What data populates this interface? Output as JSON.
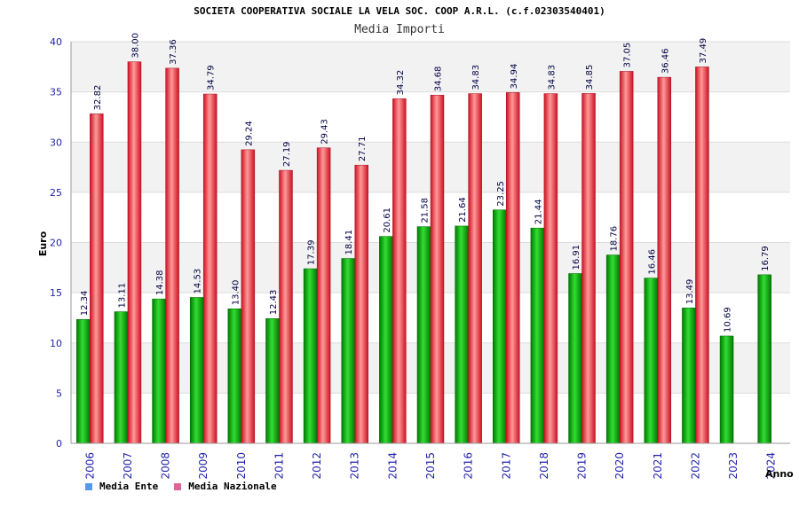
{
  "chart_data": {
    "type": "bar",
    "title": "SOCIETA COOPERATIVA SOCIALE LA VELA SOC. COOP A.R.L. (c.f.02303540401)",
    "subtitle": "Media Importi",
    "ylabel": "Euro",
    "xlabel": "Anno",
    "ylim": [
      0,
      40
    ],
    "yticks": [
      0,
      5,
      10,
      15,
      20,
      25,
      30,
      35,
      40
    ],
    "grid": true,
    "legend_position": "bottom-left",
    "categories": [
      "2006",
      "2007",
      "2008",
      "2009",
      "2010",
      "2011",
      "2012",
      "2013",
      "2014",
      "2015",
      "2016",
      "2017",
      "2018",
      "2019",
      "2020",
      "2021",
      "2022",
      "2023",
      "2024"
    ],
    "series": [
      {
        "name": "Media Ente",
        "color": "#22aa22",
        "legend_color": "#5599ee",
        "values": [
          12.34,
          13.11,
          14.38,
          14.53,
          13.4,
          12.43,
          17.39,
          18.41,
          20.61,
          21.58,
          21.64,
          23.25,
          21.44,
          16.91,
          18.76,
          16.46,
          13.49,
          10.69,
          16.79
        ],
        "labels": [
          "12.34",
          "13.11",
          "14.38",
          "14.53",
          "13.40",
          "12.43",
          "17.39",
          "18.41",
          "20.61",
          "21.58",
          "21.64",
          "23.25",
          "21.44",
          "16.91",
          "18.76",
          "16.46",
          "13.49",
          "10.69",
          "16.79"
        ]
      },
      {
        "name": "Media Nazionale",
        "color": "#ee3344",
        "legend_color": "#dd6699",
        "values": [
          32.82,
          38.0,
          37.36,
          34.79,
          29.24,
          27.19,
          29.43,
          27.71,
          34.32,
          34.68,
          34.83,
          34.94,
          34.83,
          34.85,
          37.05,
          36.46,
          37.49,
          null,
          null
        ],
        "labels": [
          "32.82",
          "38.00",
          "37.36",
          "34.79",
          "29.24",
          "27.19",
          "29.43",
          "27.71",
          "34.32",
          "34.68",
          "34.83",
          "34.94",
          "34.83",
          "34.85",
          "37.05",
          "36.46",
          "37.49",
          null,
          null
        ]
      }
    ]
  }
}
